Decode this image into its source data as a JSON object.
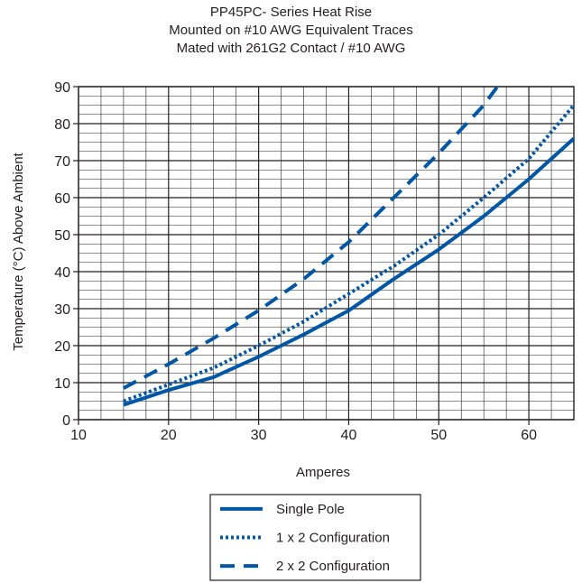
{
  "chart_data": {
    "type": "line",
    "title": "PP45PC- Series Heat Rise",
    "subtitle": [
      "Mounted on #10 AWG Equivalent Traces",
      "Mated with 261G2 Contact / #10 AWG"
    ],
    "xlabel": "Amperes",
    "ylabel": "Temperature (°C) Above Ambient",
    "xlim": [
      10,
      65
    ],
    "ylim": [
      0,
      90
    ],
    "xticks": [
      10,
      20,
      30,
      40,
      50,
      60
    ],
    "yticks": [
      0,
      10,
      20,
      30,
      40,
      50,
      60,
      70,
      80,
      90
    ],
    "grid": true,
    "legend_position": "bottom-center",
    "series_color": "#0057a8",
    "series": [
      {
        "name": "Single Pole",
        "style": "solid",
        "x": [
          15,
          20,
          25,
          30,
          35,
          40,
          45,
          50,
          55,
          60,
          65
        ],
        "y": [
          4,
          8,
          11.5,
          17,
          23,
          29.5,
          38,
          46,
          55,
          65,
          76
        ]
      },
      {
        "name": "1 x 2 Configuration",
        "style": "dotted",
        "x": [
          15,
          20,
          25,
          30,
          35,
          40,
          45,
          50,
          55,
          60,
          65
        ],
        "y": [
          5,
          9.5,
          14,
          20,
          26.5,
          34,
          41.5,
          50,
          60,
          70.5,
          85
        ]
      },
      {
        "name": "2 x 2 Configuration",
        "style": "dashed",
        "x": [
          15,
          20,
          25,
          30,
          35,
          40,
          45,
          50,
          55,
          56.5
        ],
        "y": [
          8.5,
          15,
          22,
          29.5,
          38,
          48,
          60,
          72,
          85,
          90
        ]
      }
    ]
  }
}
